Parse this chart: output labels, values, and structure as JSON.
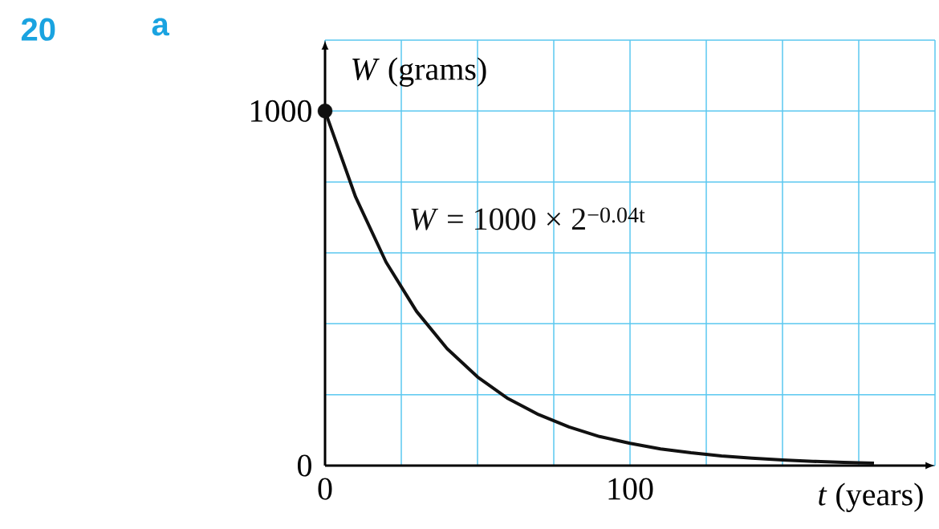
{
  "chart_data": {
    "type": "line",
    "xlabel": "*t* (years)",
    "ylabel": "*W* (grams)",
    "annotations": [
      "20",
      "a"
    ],
    "xlim": [
      0,
      200
    ],
    "ylim": [
      0,
      1200
    ],
    "xticks": [
      0,
      {
        "value": 25,
        "label": null
      },
      {
        "value": 50,
        "label": null
      },
      {
        "value": 75,
        "label": null
      },
      100,
      {
        "value": 125,
        "label": null
      },
      {
        "value": 150,
        "label": null
      },
      {
        "value": 175,
        "label": null
      },
      {
        "value": 200,
        "label": null
      }
    ],
    "yticks": [
      0,
      {
        "value": 200,
        "label": null
      },
      {
        "value": 400,
        "label": null
      },
      {
        "value": 600,
        "label": null
      },
      {
        "value": 800,
        "label": null
      },
      1000,
      {
        "value": 1200,
        "label": null
      }
    ],
    "grid": true,
    "series": [
      {
        "name": "*W* = 1000 × 2$^{−0.04t}$",
        "color": "#111111",
        "marker": "none",
        "x": [
          0,
          10,
          20,
          30,
          40,
          50,
          60,
          70,
          80,
          90,
          100,
          110,
          120,
          130,
          140,
          150,
          160,
          170,
          180
        ],
        "values": [
          1000,
          758,
          574,
          435,
          330,
          250,
          189,
          144,
          109,
          82,
          63,
          47,
          36,
          27,
          21,
          16,
          12,
          9,
          7
        ]
      },
      {
        "type": "scatter",
        "color": "#111111",
        "marker": "circle",
        "x": [
          0
        ],
        "values": [
          1000
        ]
      }
    ]
  }
}
